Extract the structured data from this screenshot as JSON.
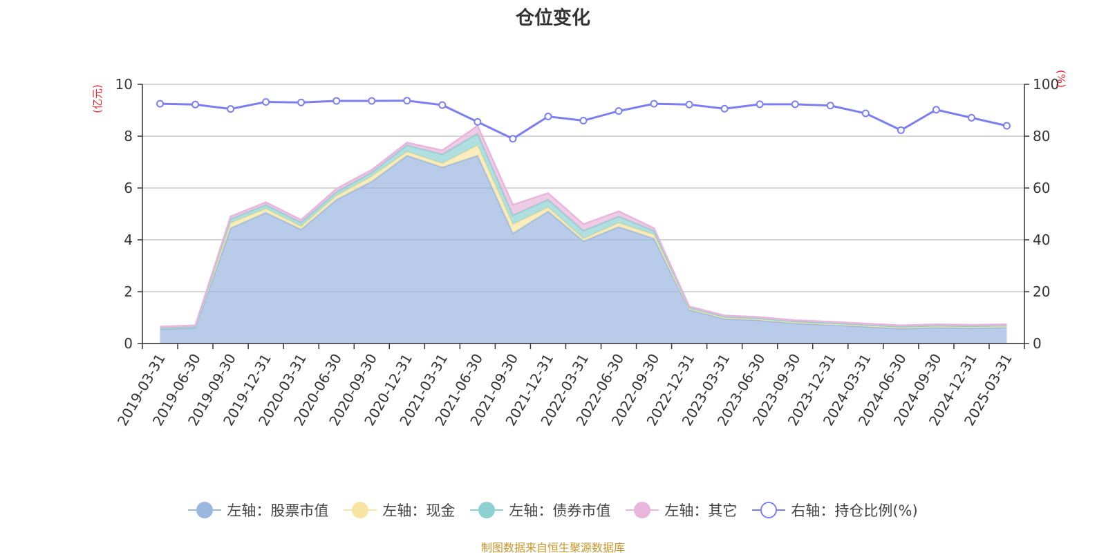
{
  "title": "仓位变化",
  "source_note": "制图数据来自恒生聚源数据库",
  "left_unit": "(亿元)",
  "right_unit": "(%)",
  "legend": [
    {
      "label": "左轴：股票市值",
      "color": "#9ab7e0",
      "marker": "filled"
    },
    {
      "label": "左轴：现金",
      "color": "#f7e4a2",
      "marker": "filled"
    },
    {
      "label": "左轴：债券市值",
      "color": "#8fd1d1",
      "marker": "filled"
    },
    {
      "label": "左轴：其它",
      "color": "#e8b6dc",
      "marker": "filled"
    },
    {
      "label": "右轴：持仓比例(%)",
      "color": "#7b7ef0",
      "marker": "hollow"
    }
  ],
  "chart_data": {
    "type": "area",
    "stacked": true,
    "categories": [
      "2019-03-31",
      "2019-06-30",
      "2019-09-30",
      "2019-12-31",
      "2020-03-31",
      "2020-06-30",
      "2020-09-30",
      "2020-12-31",
      "2021-03-31",
      "2021-06-30",
      "2021-09-30",
      "2021-12-31",
      "2022-03-31",
      "2022-06-30",
      "2022-09-30",
      "2022-12-31",
      "2023-03-31",
      "2023-06-30",
      "2023-09-30",
      "2023-12-31",
      "2024-03-31",
      "2024-06-30",
      "2024-09-30",
      "2024-12-31",
      "2025-03-31"
    ],
    "left_axis": {
      "ylim": [
        0,
        10
      ],
      "ticks": [
        0,
        2,
        4,
        6,
        8,
        10
      ]
    },
    "right_axis": {
      "ylim": [
        0,
        100
      ],
      "ticks": [
        0,
        20,
        40,
        60,
        80,
        100
      ]
    },
    "series": [
      {
        "name": "左轴：股票市值",
        "axis": "left",
        "color": "#9ab7e0",
        "values": [
          0.55,
          0.6,
          4.45,
          5.05,
          4.4,
          5.55,
          6.25,
          7.25,
          6.8,
          7.25,
          4.25,
          5.1,
          3.95,
          4.5,
          4.05,
          1.3,
          0.95,
          0.9,
          0.78,
          0.72,
          0.65,
          0.58,
          0.62,
          0.6,
          0.62
        ]
      },
      {
        "name": "左轴：现金",
        "axis": "left",
        "color": "#f7e4a2",
        "values": [
          0.05,
          0.04,
          0.2,
          0.15,
          0.12,
          0.15,
          0.2,
          0.15,
          0.15,
          0.4,
          0.35,
          0.15,
          0.1,
          0.15,
          0.15,
          0.05,
          0.05,
          0.04,
          0.04,
          0.04,
          0.04,
          0.04,
          0.04,
          0.04,
          0.04
        ]
      },
      {
        "name": "左轴：债券市值",
        "axis": "left",
        "color": "#8fd1d1",
        "values": [
          0.0,
          0.0,
          0.15,
          0.15,
          0.15,
          0.15,
          0.15,
          0.25,
          0.35,
          0.45,
          0.35,
          0.3,
          0.3,
          0.25,
          0.15,
          0.03,
          0.03,
          0.03,
          0.03,
          0.03,
          0.03,
          0.03,
          0.03,
          0.03,
          0.03
        ]
      },
      {
        "name": "左轴：其它",
        "axis": "left",
        "color": "#e8b6dc",
        "values": [
          0.05,
          0.06,
          0.1,
          0.1,
          0.1,
          0.12,
          0.1,
          0.1,
          0.15,
          0.3,
          0.4,
          0.25,
          0.25,
          0.2,
          0.1,
          0.05,
          0.05,
          0.05,
          0.05,
          0.05,
          0.05,
          0.05,
          0.05,
          0.05,
          0.05
        ]
      },
      {
        "name": "右轴：持仓比例(%)",
        "axis": "right",
        "type": "line",
        "color": "#7b7ef0",
        "values": [
          92.5,
          92.2,
          90.5,
          93.2,
          93.0,
          93.6,
          93.6,
          93.7,
          92.0,
          85.5,
          79.0,
          87.6,
          86.0,
          89.7,
          92.5,
          92.2,
          90.6,
          92.3,
          92.3,
          91.8,
          88.8,
          82.3,
          90.2,
          87.1,
          84.0
        ]
      }
    ]
  }
}
